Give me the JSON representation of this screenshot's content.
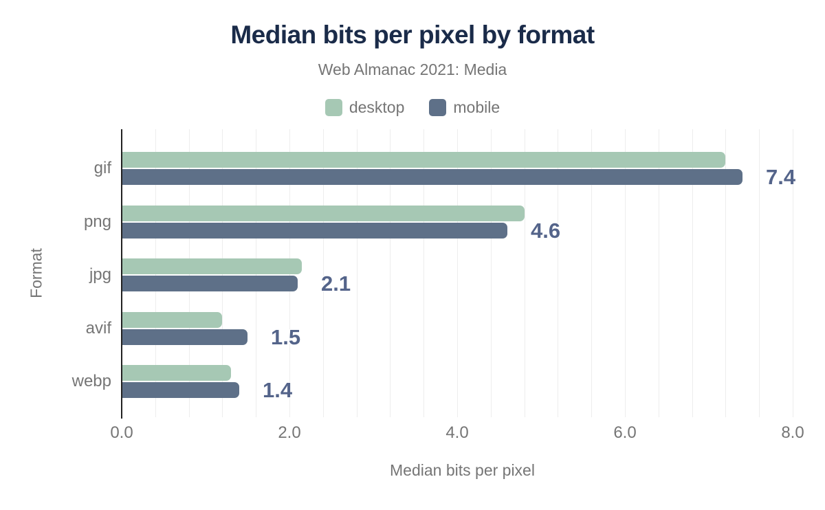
{
  "chart_data": {
    "type": "bar",
    "orientation": "horizontal",
    "title": "Median bits per pixel by format",
    "subtitle": "Web Almanac 2021: Media",
    "categories": [
      "gif",
      "png",
      "jpg",
      "avif",
      "webp"
    ],
    "series": [
      {
        "name": "desktop",
        "color": "#a6c8b4",
        "values": [
          7.2,
          4.8,
          2.15,
          1.2,
          1.3
        ]
      },
      {
        "name": "mobile",
        "color": "#5e7088",
        "values": [
          7.4,
          4.6,
          2.1,
          1.5,
          1.4
        ]
      }
    ],
    "annotations": [
      "7.4",
      "4.6",
      "2.1",
      "1.5",
      "1.4"
    ],
    "annotation_series": "mobile",
    "xlabel": "Median bits per pixel",
    "ylabel": "Format",
    "xlim": [
      0,
      8.1
    ],
    "x_ticks": [
      0,
      2,
      4,
      6,
      8
    ],
    "x_tick_labels": [
      "0.0",
      "2.0",
      "4.0",
      "6.0",
      "8.0"
    ],
    "minor_grid_step": 0.4,
    "grid": true,
    "legend_position": "top"
  },
  "colors": {
    "title": "#1a2b49",
    "muted_text": "#757575",
    "annotation": "#54648a",
    "gridline": "#ededed",
    "axis_line": "#212121",
    "background": "#ffffff"
  }
}
